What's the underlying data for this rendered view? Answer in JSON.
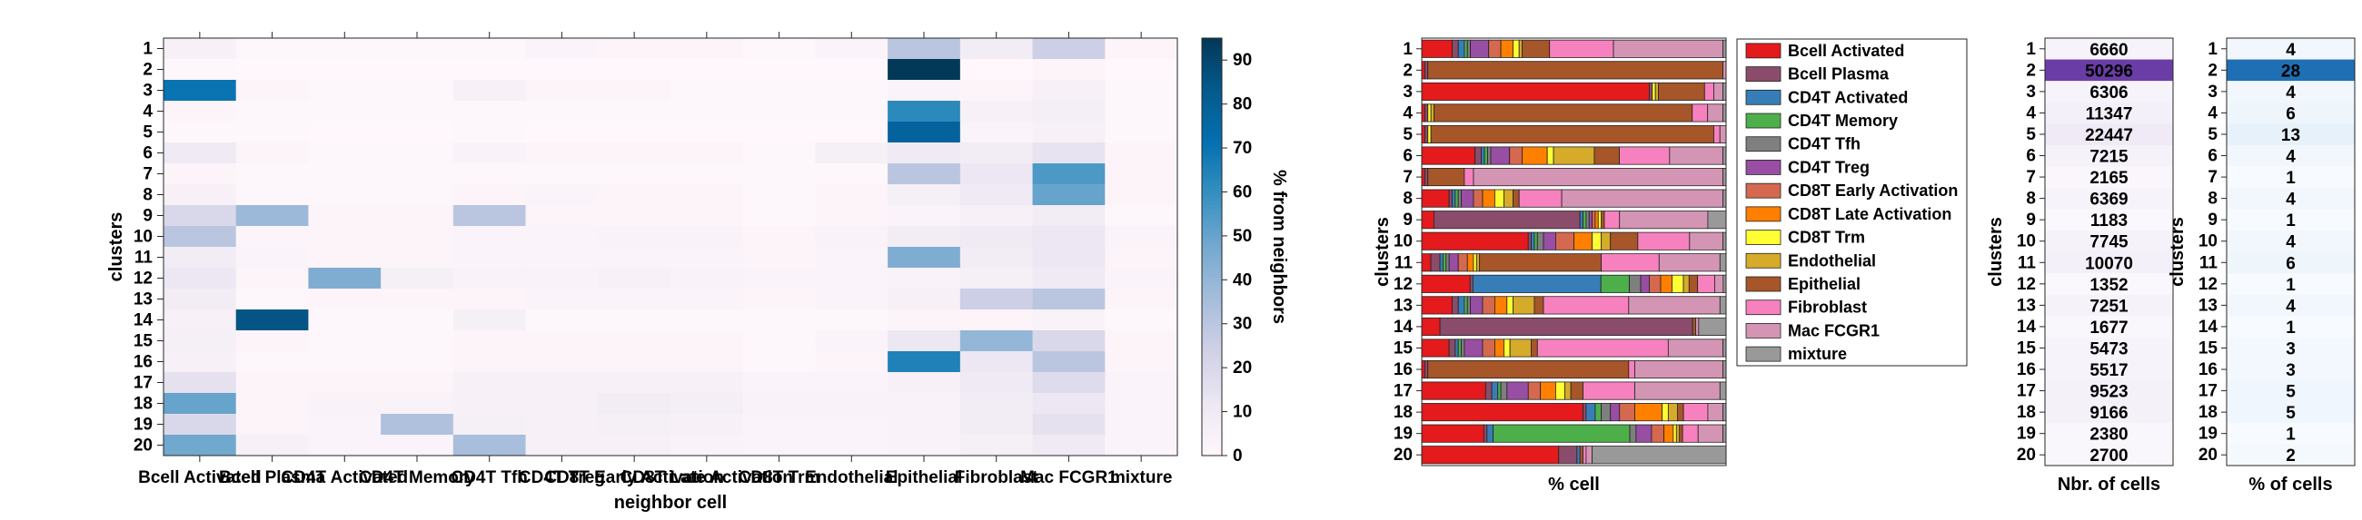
{
  "chart_data": [
    {
      "type": "heatmap",
      "xlabel": "neighbor cell",
      "ylabel": "clusters",
      "colorbar_label": "% from neighbors",
      "colorbar_ticks": [
        0,
        10,
        20,
        30,
        40,
        50,
        60,
        70,
        80,
        90
      ],
      "zlim": [
        0,
        95
      ],
      "colormap": [
        "#fff7fb",
        "#ece7f2",
        "#d0d1e6",
        "#a6bddb",
        "#74a9cf",
        "#3690c0",
        "#0570b0",
        "#045a8d",
        "#023858"
      ],
      "x": [
        "Bcell Activated",
        "Bcell Plasma",
        "CD4T Activated",
        "CD4T Memory",
        "CD4T Tfh",
        "CD4T Treg",
        "CD8T Early Activation",
        "CD8T Late Activation",
        "CD8T Trm",
        "Endothelial",
        "Epithelial",
        "Fibroblast",
        "Mac FCGR1",
        "mixture"
      ],
      "y": [
        "1",
        "2",
        "3",
        "4",
        "5",
        "6",
        "7",
        "8",
        "9",
        "10",
        "11",
        "12",
        "13",
        "14",
        "15",
        "16",
        "17",
        "18",
        "19",
        "20"
      ],
      "z": [
        [
          5,
          1,
          1,
          1,
          1,
          3,
          2,
          2,
          1,
          3,
          30,
          8,
          25,
          2
        ],
        [
          1,
          0,
          0,
          0,
          0,
          0,
          0,
          0,
          0,
          0,
          95,
          0,
          2,
          0
        ],
        [
          70,
          2,
          1,
          1,
          5,
          2,
          2,
          1,
          1,
          1,
          3,
          2,
          5,
          1
        ],
        [
          2,
          1,
          1,
          1,
          1,
          1,
          1,
          1,
          1,
          1,
          62,
          5,
          7,
          1
        ],
        [
          1,
          1,
          0,
          0,
          1,
          0,
          0,
          0,
          0,
          0,
          78,
          3,
          5,
          1
        ],
        [
          10,
          2,
          1,
          1,
          4,
          2,
          2,
          2,
          1,
          6,
          10,
          8,
          14,
          2
        ],
        [
          2,
          1,
          1,
          1,
          1,
          1,
          1,
          1,
          1,
          1,
          30,
          12,
          55,
          2
        ],
        [
          5,
          1,
          1,
          1,
          2,
          3,
          2,
          2,
          1,
          2,
          6,
          10,
          50,
          2
        ],
        [
          20,
          38,
          2,
          2,
          30,
          2,
          2,
          2,
          1,
          2,
          3,
          5,
          8,
          1
        ],
        [
          30,
          2,
          2,
          2,
          3,
          3,
          4,
          4,
          2,
          4,
          8,
          10,
          12,
          3
        ],
        [
          8,
          3,
          2,
          2,
          3,
          3,
          3,
          3,
          2,
          3,
          45,
          8,
          12,
          2
        ],
        [
          12,
          2,
          45,
          6,
          4,
          4,
          5,
          4,
          3,
          3,
          4,
          6,
          10,
          3
        ],
        [
          8,
          1,
          2,
          2,
          2,
          3,
          3,
          3,
          2,
          3,
          5,
          25,
          30,
          2
        ],
        [
          5,
          85,
          1,
          1,
          6,
          1,
          1,
          1,
          1,
          1,
          2,
          2,
          4,
          1
        ],
        [
          6,
          2,
          1,
          1,
          2,
          2,
          2,
          2,
          1,
          3,
          12,
          40,
          20,
          2
        ],
        [
          5,
          1,
          1,
          1,
          2,
          2,
          2,
          2,
          1,
          2,
          65,
          12,
          30,
          2
        ],
        [
          15,
          2,
          2,
          2,
          5,
          5,
          5,
          5,
          3,
          3,
          5,
          10,
          18,
          3
        ],
        [
          50,
          2,
          4,
          4,
          5,
          5,
          8,
          7,
          4,
          4,
          4,
          8,
          12,
          3
        ],
        [
          20,
          2,
          3,
          33,
          6,
          5,
          6,
          5,
          3,
          3,
          4,
          8,
          15,
          3
        ],
        [
          48,
          5,
          3,
          3,
          35,
          5,
          5,
          4,
          3,
          3,
          4,
          6,
          10,
          3
        ]
      ]
    },
    {
      "type": "bar",
      "orientation": "horizontal",
      "stacked": true,
      "xlabel": "% cell",
      "ylabel": "clusters",
      "categories": [
        "1",
        "2",
        "3",
        "4",
        "5",
        "6",
        "7",
        "8",
        "9",
        "10",
        "11",
        "12",
        "13",
        "14",
        "15",
        "16",
        "17",
        "18",
        "19",
        "20"
      ],
      "legend_position": "right",
      "series": [
        {
          "name": "Bcell Activated",
          "color": "#e41a1c",
          "values": [
            10,
            1,
            74,
            1,
            1,
            17,
            1,
            9,
            4,
            35,
            3,
            17,
            10,
            6,
            9,
            1,
            21,
            53,
            20,
            45
          ]
        },
        {
          "name": "Bcell Plasma",
          "color": "#8b4c6b",
          "values": [
            2,
            1,
            1,
            1,
            1,
            2,
            1,
            1,
            48,
            1,
            3,
            1,
            2,
            83,
            2,
            1,
            2,
            1,
            1,
            6
          ]
        },
        {
          "name": "CD4T Activated",
          "color": "#377eb8",
          "values": [
            2,
            0,
            0,
            0,
            0,
            1,
            0,
            1,
            1,
            1,
            1,
            45,
            2,
            0,
            1,
            0,
            2,
            3,
            2,
            1
          ]
        },
        {
          "name": "CD4T Memory",
          "color": "#4daf4a",
          "values": [
            1,
            0,
            0,
            0,
            0,
            1,
            0,
            1,
            1,
            1,
            1,
            10,
            1,
            0,
            1,
            0,
            1,
            2,
            44,
            0
          ]
        },
        {
          "name": "CD4T Tfh",
          "color": "#7f7f7f",
          "values": [
            1,
            0,
            0,
            0,
            0,
            1,
            0,
            1,
            1,
            2,
            1,
            4,
            1,
            0,
            1,
            0,
            2,
            3,
            2,
            0
          ]
        },
        {
          "name": "CD4T Treg",
          "color": "#984ea3",
          "values": [
            6,
            0,
            0,
            0,
            0,
            6,
            0,
            4,
            1,
            4,
            3,
            3,
            4,
            0,
            6,
            0,
            7,
            3,
            5,
            0
          ]
        },
        {
          "name": "CD8T Early Activation",
          "color": "#d4694f",
          "values": [
            4,
            0,
            0,
            0,
            0,
            4,
            0,
            3,
            1,
            6,
            3,
            4,
            4,
            0,
            4,
            0,
            4,
            5,
            4,
            0
          ]
        },
        {
          "name": "CD8T Late Activation",
          "color": "#ff7f00",
          "values": [
            4,
            0,
            0,
            0,
            0,
            8,
            0,
            4,
            1,
            6,
            2,
            4,
            4,
            0,
            3,
            0,
            5,
            9,
            3,
            0
          ]
        },
        {
          "name": "CD8T Trm",
          "color": "#ffff33",
          "values": [
            2,
            0,
            1,
            1,
            1,
            2,
            0,
            3,
            1,
            3,
            1,
            4,
            2,
            0,
            2,
            0,
            3,
            2,
            1,
            0
          ]
        },
        {
          "name": "Endothelial",
          "color": "#d6ab2a",
          "values": [
            1,
            0,
            1,
            1,
            0,
            13,
            0,
            3,
            0,
            3,
            1,
            2,
            7,
            0,
            7,
            0,
            2,
            3,
            1,
            0
          ]
        },
        {
          "name": "Epithelial",
          "color": "#a65628",
          "values": [
            9,
            97,
            15,
            84,
            92,
            8,
            12,
            2,
            1,
            9,
            40,
            3,
            3,
            1,
            2,
            66,
            4,
            2,
            1,
            1
          ]
        },
        {
          "name": "Fibroblast",
          "color": "#f781bf",
          "values": [
            21,
            0,
            3,
            5,
            2,
            16,
            3,
            14,
            5,
            17,
            19,
            6,
            28,
            0,
            43,
            2,
            17,
            8,
            5,
            1
          ]
        },
        {
          "name": "Mac FCGR1",
          "color": "#d495b5",
          "values": [
            36,
            1,
            3,
            5,
            2,
            17,
            82,
            53,
            29,
            11,
            20,
            3,
            30,
            1,
            18,
            29,
            28,
            5,
            8,
            2
          ]
        },
        {
          "name": "mixture",
          "color": "#999999",
          "values": [
            1,
            0,
            1,
            1,
            0,
            1,
            1,
            1,
            6,
            1,
            2,
            1,
            2,
            9,
            1,
            1,
            2,
            1,
            1,
            44
          ]
        }
      ]
    },
    {
      "type": "table",
      "xlabel": "Nbr. of cells",
      "ylabel": "clusters",
      "categories": [
        "1",
        "2",
        "3",
        "4",
        "5",
        "6",
        "7",
        "8",
        "9",
        "10",
        "11",
        "12",
        "13",
        "14",
        "15",
        "16",
        "17",
        "18",
        "19",
        "20"
      ],
      "values": [
        6660,
        50296,
        6306,
        11347,
        22447,
        7215,
        2165,
        6369,
        1183,
        7745,
        10070,
        1352,
        7251,
        1677,
        5473,
        5517,
        9523,
        9166,
        2380,
        2700
      ]
    },
    {
      "type": "table",
      "xlabel": "% of cells",
      "ylabel": "clusters",
      "categories": [
        "1",
        "2",
        "3",
        "4",
        "5",
        "6",
        "7",
        "8",
        "9",
        "10",
        "11",
        "12",
        "13",
        "14",
        "15",
        "16",
        "17",
        "18",
        "19",
        "20"
      ],
      "values": [
        4,
        28,
        4,
        6,
        13,
        4,
        1,
        4,
        1,
        4,
        6,
        1,
        4,
        1,
        3,
        3,
        5,
        5,
        1,
        2
      ]
    }
  ]
}
